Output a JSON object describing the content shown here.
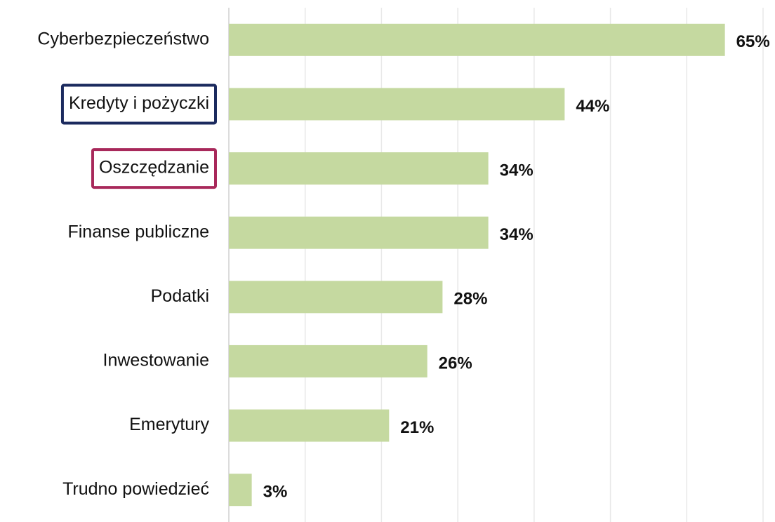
{
  "chart_data": {
    "type": "bar",
    "orientation": "horizontal",
    "categories": [
      "Cyberbezpieczeństwo",
      "Kredyty i pożyczki",
      "Oszczędzanie",
      "Finanse publiczne",
      "Podatki",
      "Inwestowanie",
      "Emerytury",
      "Trudno powiedzieć"
    ],
    "values": [
      65,
      44,
      34,
      34,
      28,
      26,
      21,
      3
    ],
    "value_labels": [
      "65%",
      "44%",
      "34%",
      "34%",
      "28%",
      "26%",
      "21%",
      "3%"
    ],
    "color": "#c5d9a0",
    "label_boxes": [
      null,
      "#1b2a5e",
      "#a8285a",
      null,
      null,
      null,
      null,
      null
    ],
    "xlim": [
      0,
      70
    ],
    "xticks": [
      0,
      10,
      20,
      30,
      40,
      50,
      60,
      70
    ],
    "grid": true
  }
}
